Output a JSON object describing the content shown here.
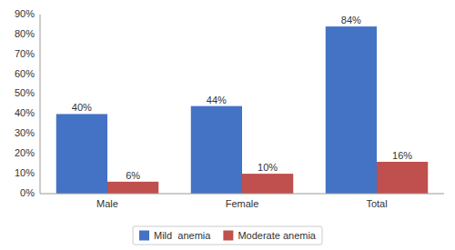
{
  "chart_data": {
    "type": "bar",
    "categories": [
      "Male",
      "Female",
      "Total"
    ],
    "series": [
      {
        "name": "Mild  anemia",
        "color": "#4472C4",
        "values": [
          40,
          44,
          84
        ],
        "value_labels": [
          "40%",
          "44%",
          "84%"
        ]
      },
      {
        "name": "Moderate anemia",
        "color": "#C0504D",
        "values": [
          6,
          10,
          16
        ],
        "value_labels": [
          "6%",
          "10%",
          "16%"
        ]
      }
    ],
    "ylim": [
      0,
      90
    ],
    "yticks": [
      {
        "value": 0,
        "label": "0%"
      },
      {
        "value": 10,
        "label": "10%"
      },
      {
        "value": 20,
        "label": "20%"
      },
      {
        "value": 30,
        "label": "30%"
      },
      {
        "value": 40,
        "label": "40%"
      },
      {
        "value": 50,
        "label": "50%"
      },
      {
        "value": 60,
        "label": "60%"
      },
      {
        "value": 70,
        "label": "70%"
      },
      {
        "value": 80,
        "label": "80%"
      },
      {
        "value": 90,
        "label": "90%"
      }
    ],
    "data_labels": true,
    "grid": false,
    "legend": "bottom"
  }
}
